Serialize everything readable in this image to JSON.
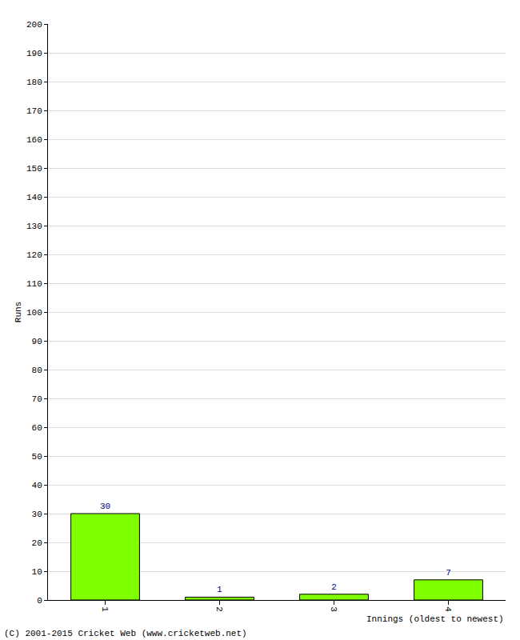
{
  "chart_data": {
    "type": "bar",
    "ylabel": "Runs",
    "xlabel": "Innings (oldest to newest)",
    "categories": [
      "1",
      "2",
      "3",
      "4"
    ],
    "values": [
      30,
      1,
      2,
      7
    ],
    "color": "#80ff00",
    "data_labels": true,
    "ylim": [
      0,
      200
    ],
    "yticks": [
      0,
      10,
      20,
      30,
      40,
      50,
      60,
      70,
      80,
      90,
      100,
      110,
      120,
      130,
      140,
      150,
      160,
      170,
      180,
      190,
      200
    ],
    "grid": true,
    "annotations": [
      "(C) 2001-2015 Cricket Web (www.cricketweb.net)"
    ]
  }
}
